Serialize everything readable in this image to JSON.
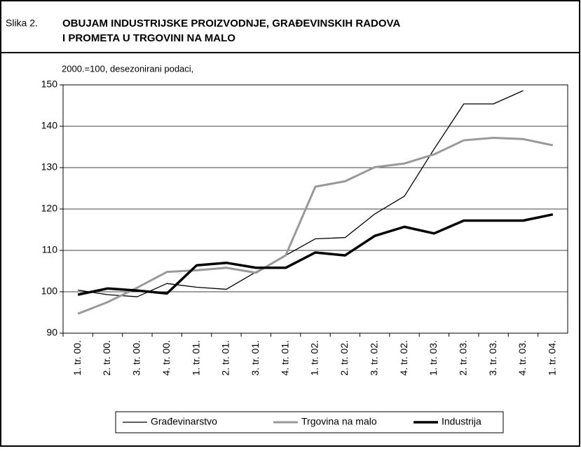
{
  "chart_data": {
    "type": "line",
    "figure_label": "Slika 2.",
    "title": "OBUJAM INDUSTRIJSKE PROIZVODNJE, GRAĐEVINSKIH RADOVA",
    "title_line2": "I PROMETA U TRGOVINI NA MALO",
    "subtitle": "2000.=100, desezonirani podaci,",
    "categories": [
      "1. tr. 00.",
      "2. tr. 00.",
      "3. tr. 00.",
      "4. tr. 00.",
      "1. tr. 01.",
      "2. tr. 01.",
      "3. tr. 01.",
      "4. tr. 01.",
      "1. tr. 02.",
      "2. tr. 02.",
      "3. tr. 02.",
      "4. tr. 02.",
      "1. tr. 03.",
      "2. tr. 03.",
      "3. tr. 03.",
      "4. tr. 03.",
      "1. tr. 04."
    ],
    "series": [
      {
        "name": "Građevinarstvo",
        "color": "#000000",
        "width": 1.3,
        "values": [
          100.4,
          99.3,
          98.8,
          102,
          101.1,
          100.6,
          104.8,
          108.8,
          112.8,
          113.1,
          118.8,
          123.1,
          134.5,
          145.4,
          145.4,
          148.6,
          null
        ]
      },
      {
        "name": "Trgovina na malo",
        "color": "#999999",
        "width": 3,
        "values": [
          94.7,
          97.5,
          101,
          104.8,
          105.2,
          105.8,
          104.6,
          108.8,
          125.4,
          126.7,
          130.1,
          131,
          133.2,
          136.6,
          137.2,
          136.9,
          135.4
        ]
      },
      {
        "name": "Industrija",
        "color": "#000000",
        "width": 3.5,
        "values": [
          99.3,
          100.8,
          100.3,
          99.6,
          106.4,
          107,
          105.8,
          105.8,
          109.5,
          108.8,
          113.5,
          115.7,
          114.1,
          117.2,
          117.2,
          117.2,
          118.7
        ]
      }
    ],
    "ylim": [
      90,
      150
    ],
    "yticks": [
      90,
      100,
      110,
      120,
      130,
      140,
      150
    ],
    "grid": true
  }
}
